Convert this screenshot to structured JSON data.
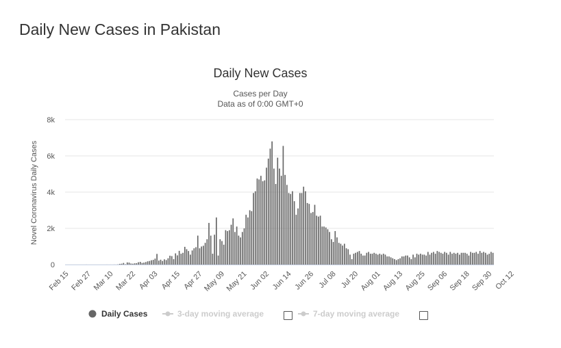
{
  "page": {
    "heading": "Daily New Cases in Pakistan"
  },
  "chart_data": {
    "type": "bar",
    "title": "Daily New Cases",
    "subtitle_lines": [
      "Cases per Day",
      "Data as of 0:00 GMT+0"
    ],
    "xlabel": "",
    "ylabel": "Novel Coronavirus Daily Cases",
    "ylim": [
      0,
      8000
    ],
    "y_ticks": [
      0,
      2000,
      4000,
      6000,
      8000
    ],
    "y_tick_labels": [
      "0",
      "2k",
      "4k",
      "6k",
      "8k"
    ],
    "x_start_date": "Feb 15",
    "x_tick_labels": [
      "Feb 15",
      "Feb 27",
      "Mar 10",
      "Mar 22",
      "Apr 03",
      "Apr 15",
      "Apr 27",
      "May 09",
      "May 21",
      "Jun 02",
      "Jun 14",
      "Jun 26",
      "Jul 08",
      "Jul 20",
      "Aug 01",
      "Aug 13",
      "Aug 25",
      "Sep 06",
      "Sep 18",
      "Sep 30",
      "Oct 12"
    ],
    "grid": true,
    "bar_color": "#666666",
    "series": [
      {
        "name": "Daily Cases",
        "values": [
          0,
          0,
          0,
          0,
          0,
          0,
          0,
          0,
          0,
          0,
          0,
          2,
          0,
          0,
          0,
          0,
          0,
          0,
          0,
          0,
          0,
          0,
          1,
          0,
          1,
          0,
          3,
          2,
          12,
          40,
          50,
          90,
          20,
          120,
          110,
          60,
          50,
          70,
          80,
          130,
          150,
          90,
          110,
          140,
          180,
          200,
          240,
          260,
          330,
          590,
          220,
          270,
          200,
          290,
          250,
          350,
          490,
          470,
          300,
          620,
          510,
          760,
          600,
          650,
          980,
          850,
          750,
          550,
          780,
          900,
          960,
          1600,
          900,
          1000,
          1040,
          1200,
          1400,
          2300,
          1600,
          600,
          1650,
          2600,
          500,
          1400,
          1300,
          1100,
          1900,
          1850,
          1900,
          2200,
          2550,
          1800,
          2100,
          1600,
          1500,
          1800,
          2000,
          2750,
          2600,
          3000,
          2950,
          3950,
          4050,
          4750,
          4700,
          4900,
          4600,
          4650,
          5350,
          5850,
          6400,
          6800,
          5300,
          4450,
          5900,
          5300,
          4900,
          6550,
          4950,
          4400,
          3950,
          3900,
          4050,
          3500,
          2750,
          3100,
          3950,
          3950,
          4300,
          4050,
          3400,
          3350,
          2850,
          2900,
          3300,
          2700,
          2650,
          2700,
          2100,
          2100,
          2050,
          1950,
          1800,
          1400,
          1250,
          1850,
          1500,
          1200,
          1150,
          1050,
          1150,
          900,
          850,
          550,
          300,
          600,
          650,
          700,
          750,
          600,
          500,
          500,
          650,
          700,
          600,
          600,
          650,
          600,
          550,
          600,
          550,
          600,
          550,
          450,
          450,
          400,
          350,
          300,
          250,
          300,
          350,
          450,
          450,
          500,
          500,
          400,
          300,
          550,
          400,
          600,
          550,
          600,
          550,
          550,
          500,
          700,
          550,
          650,
          700,
          600,
          750,
          700,
          650,
          600,
          700,
          650,
          550,
          700,
          600,
          650,
          600,
          650,
          550,
          650,
          650,
          650,
          600,
          500,
          700,
          650,
          650,
          700,
          600,
          750,
          650,
          700,
          650,
          550,
          600,
          700,
          650
        ]
      }
    ],
    "legend": {
      "position": "bottom",
      "items": [
        {
          "label": "Daily Cases",
          "active": true
        },
        {
          "label": "3-day moving average",
          "active": false
        },
        {
          "label": "7-day moving average",
          "active": false
        }
      ]
    }
  }
}
